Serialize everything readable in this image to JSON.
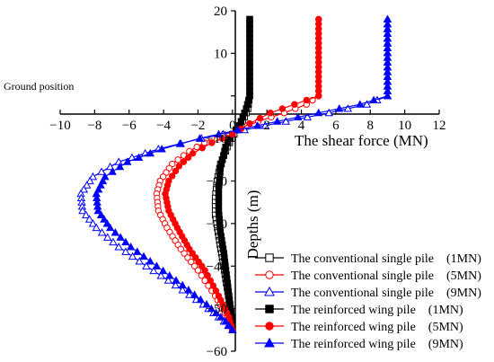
{
  "chart_data": {
    "type": "line",
    "title": "",
    "xlabel": "The shear force (MN)",
    "ylabel": "Depths (m)",
    "ground_label": "Ground position",
    "xlim": [
      -10,
      12
    ],
    "ylim": [
      -60,
      20
    ],
    "x_ticks": [
      "−10",
      "−8",
      "−6",
      "−4",
      "−2",
      "0",
      "2",
      "4",
      "6",
      "8",
      "10",
      "12"
    ],
    "y_ticks": [
      "20",
      "10",
      "0",
      "−10",
      "−20",
      "−30",
      "−40",
      "−50",
      "−60"
    ],
    "grid": false,
    "legend_position": "bottom-right",
    "series": [
      {
        "name": "The conventional single pile　(1MN)",
        "color": "#000000",
        "marker": "square",
        "filled": false,
        "points": [
          [
            1.0,
            18
          ],
          [
            1.0,
            0
          ],
          [
            0.9,
            -3
          ],
          [
            0.6,
            -6
          ],
          [
            0.1,
            -9
          ],
          [
            -0.3,
            -12
          ],
          [
            -0.7,
            -16
          ],
          [
            -0.9,
            -20
          ],
          [
            -1.0,
            -24
          ],
          [
            -1.0,
            -28
          ],
          [
            -0.8,
            -33
          ],
          [
            -0.6,
            -38
          ],
          [
            -0.4,
            -43
          ],
          [
            -0.2,
            -48
          ],
          [
            -0.05,
            -52
          ],
          [
            0,
            -55
          ]
        ]
      },
      {
        "name": "The conventional single pile　(5MN)",
        "color": "#ff0000",
        "marker": "circle",
        "filled": false,
        "points": [
          [
            5.0,
            18
          ],
          [
            5.0,
            0
          ],
          [
            4.3,
            -2
          ],
          [
            3.0,
            -4
          ],
          [
            1.5,
            -6
          ],
          [
            0.2,
            -8
          ],
          [
            -1.2,
            -10
          ],
          [
            -2.5,
            -13
          ],
          [
            -3.5,
            -16
          ],
          [
            -4.2,
            -20
          ],
          [
            -4.4,
            -23
          ],
          [
            -4.3,
            -27
          ],
          [
            -3.8,
            -31
          ],
          [
            -3.0,
            -36
          ],
          [
            -2.0,
            -41
          ],
          [
            -1.0,
            -47
          ],
          [
            -0.3,
            -52
          ],
          [
            0,
            -55
          ]
        ]
      },
      {
        "name": "The conventional single pile　(9MN)",
        "color": "#0000ff",
        "marker": "triangle",
        "filled": false,
        "points": [
          [
            9.0,
            18
          ],
          [
            9.0,
            0
          ],
          [
            7.8,
            -2
          ],
          [
            5.6,
            -4
          ],
          [
            3.1,
            -6
          ],
          [
            0.7,
            -8
          ],
          [
            -1.8,
            -10
          ],
          [
            -4.3,
            -12.5
          ],
          [
            -6.6,
            -15.5
          ],
          [
            -8.1,
            -19
          ],
          [
            -8.8,
            -23
          ],
          [
            -8.7,
            -27
          ],
          [
            -7.9,
            -31
          ],
          [
            -6.6,
            -35.5
          ],
          [
            -5.0,
            -40
          ],
          [
            -3.3,
            -44.5
          ],
          [
            -1.7,
            -49
          ],
          [
            -0.5,
            -53
          ],
          [
            0,
            -55
          ]
        ]
      },
      {
        "name": "The reinforced wing pile　(1MN)",
        "color": "#000000",
        "marker": "square",
        "filled": true,
        "points": [
          [
            1.0,
            18
          ],
          [
            1.0,
            0
          ],
          [
            0.8,
            -3
          ],
          [
            0.4,
            -7
          ],
          [
            0,
            -9
          ],
          [
            -0.4,
            -12
          ],
          [
            -0.7,
            -17
          ],
          [
            -0.8,
            -22
          ],
          [
            -0.8,
            -27
          ],
          [
            -0.7,
            -32
          ],
          [
            -0.5,
            -37
          ],
          [
            -0.35,
            -42
          ],
          [
            -0.2,
            -47
          ],
          [
            -0.05,
            -52
          ],
          [
            0,
            -55
          ]
        ]
      },
      {
        "name": "The reinforced wing pile　(5MN)",
        "color": "#ff0000",
        "marker": "circle",
        "filled": true,
        "points": [
          [
            5.0,
            18
          ],
          [
            5.0,
            0
          ],
          [
            3.6,
            -2
          ],
          [
            2.2,
            -4
          ],
          [
            1.0,
            -6.5
          ],
          [
            0,
            -9
          ],
          [
            -1.2,
            -11
          ],
          [
            -2.3,
            -13.5
          ],
          [
            -3.1,
            -16.5
          ],
          [
            -3.7,
            -20
          ],
          [
            -3.9,
            -23
          ],
          [
            -3.7,
            -27
          ],
          [
            -3.2,
            -31
          ],
          [
            -2.5,
            -36
          ],
          [
            -1.6,
            -41
          ],
          [
            -0.8,
            -47
          ],
          [
            -0.2,
            -52
          ],
          [
            0,
            -55
          ]
        ]
      },
      {
        "name": "The reinforced wing pile　(9MN)",
        "color": "#0000ff",
        "marker": "triangle",
        "filled": true,
        "points": [
          [
            9.0,
            18
          ],
          [
            9.0,
            0
          ],
          [
            7.4,
            -2
          ],
          [
            5.0,
            -4
          ],
          [
            2.6,
            -6
          ],
          [
            0.3,
            -8
          ],
          [
            -1.9,
            -10
          ],
          [
            -4.1,
            -12.5
          ],
          [
            -6.1,
            -15.5
          ],
          [
            -7.4,
            -19
          ],
          [
            -7.9,
            -23
          ],
          [
            -7.8,
            -27
          ],
          [
            -7.1,
            -31
          ],
          [
            -5.9,
            -35.5
          ],
          [
            -4.4,
            -40
          ],
          [
            -2.9,
            -44.5
          ],
          [
            -1.5,
            -49
          ],
          [
            -0.4,
            -53
          ],
          [
            0,
            -55
          ]
        ]
      }
    ]
  }
}
